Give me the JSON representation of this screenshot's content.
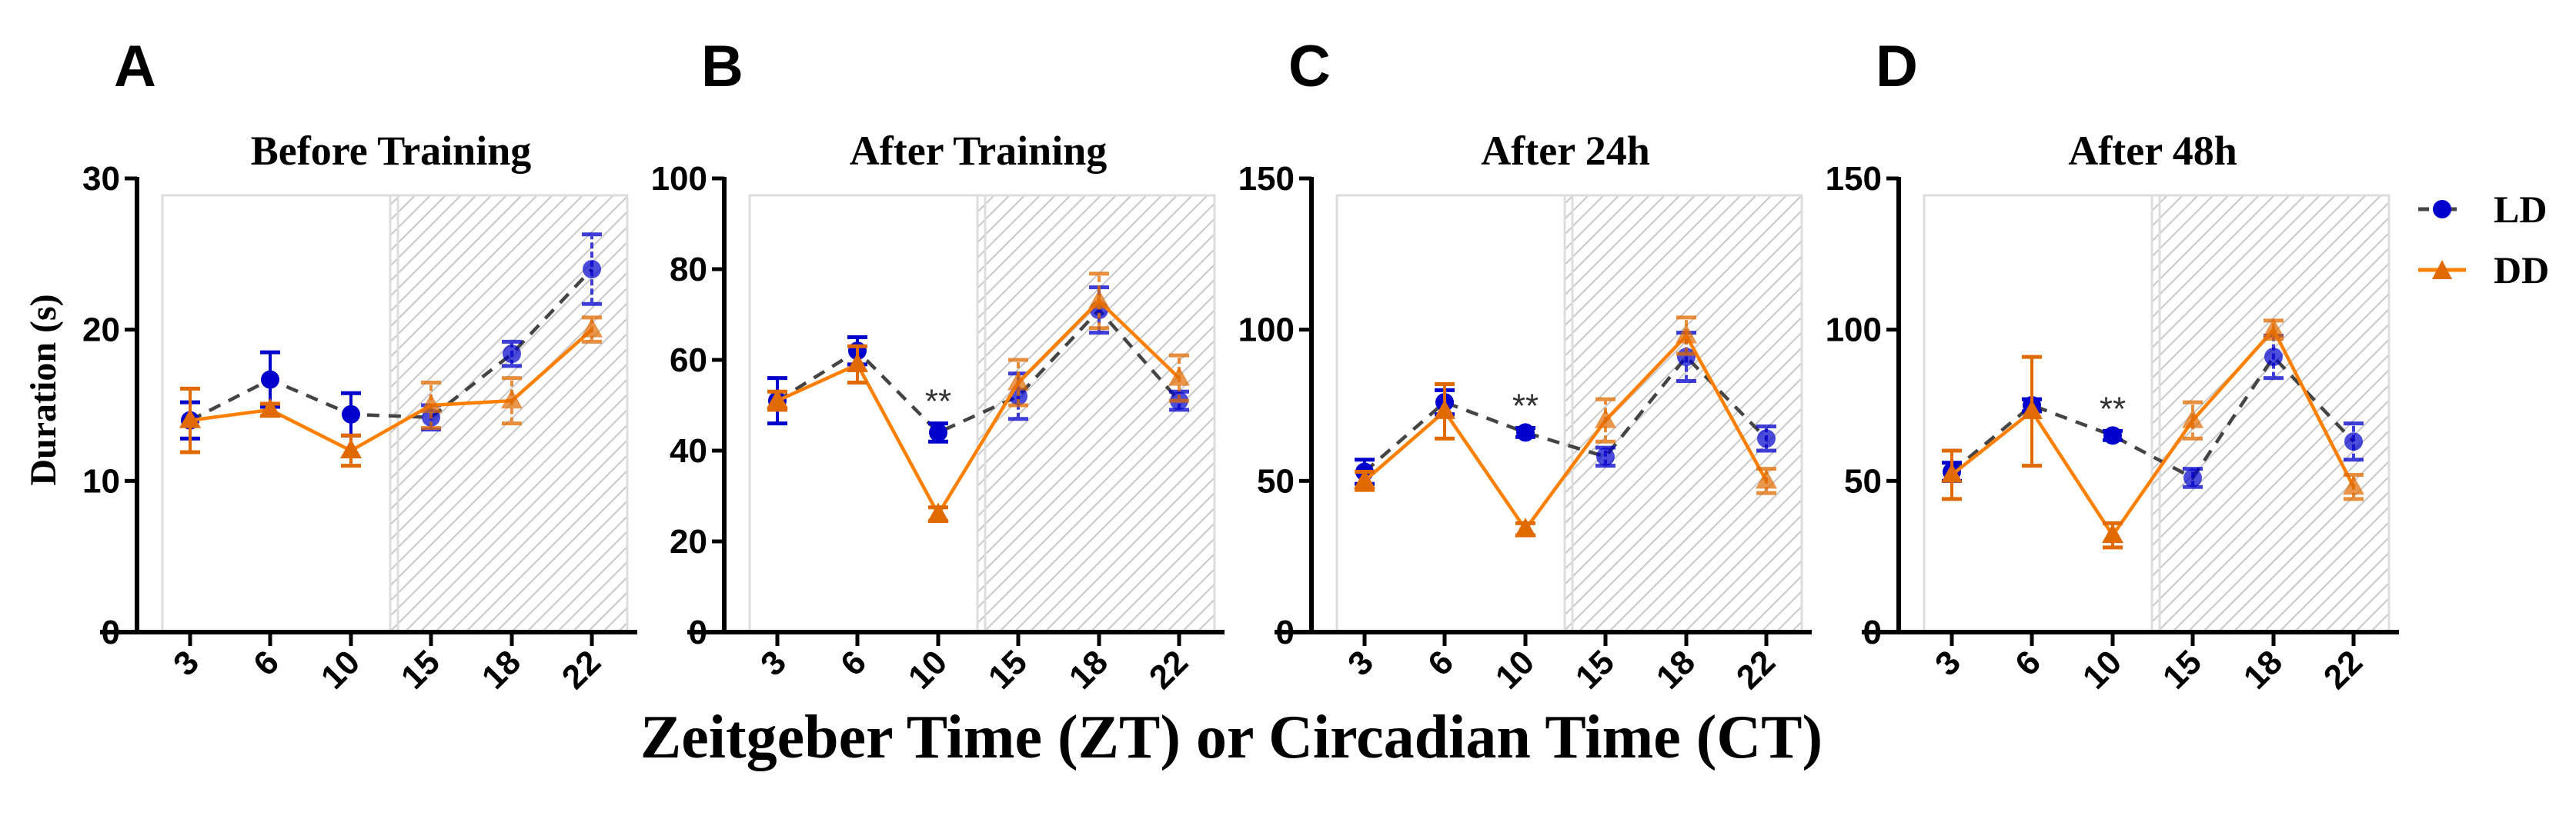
{
  "figure": {
    "xlabel": "Zeitgeber Time (ZT) or Circadian Time (CT)",
    "ylabel": "Duration (s)",
    "legend": [
      {
        "name": "LD",
        "color": "#0000cc",
        "line": "dashed",
        "marker": "circle"
      },
      {
        "name": "DD",
        "color": "#ff8000",
        "line": "solid",
        "marker": "triangle"
      }
    ],
    "legend_position": "right"
  },
  "chart_data": [
    {
      "type": "line",
      "letter": "A",
      "title": "Before Training",
      "categories": [
        "3",
        "6",
        "10",
        "15",
        "18",
        "22"
      ],
      "ylim": [
        0,
        30
      ],
      "yticks": [
        0,
        10,
        20,
        30
      ],
      "dark_phase_from": "15",
      "series": [
        {
          "name": "LD",
          "values": [
            14.0,
            16.7,
            14.4,
            14.2,
            18.4,
            24.0
          ],
          "errors": [
            1.2,
            1.8,
            1.4,
            0.8,
            0.8,
            2.3
          ]
        },
        {
          "name": "DD",
          "values": [
            14.0,
            14.7,
            12.0,
            15.0,
            15.3,
            20.0
          ],
          "errors": [
            2.1,
            0.4,
            1.0,
            1.5,
            1.5,
            0.8
          ]
        }
      ],
      "annotations": []
    },
    {
      "type": "line",
      "letter": "B",
      "title": "After Training",
      "categories": [
        "3",
        "6",
        "10",
        "15",
        "18",
        "22"
      ],
      "ylim": [
        0,
        100
      ],
      "yticks": [
        0,
        20,
        40,
        60,
        80,
        100
      ],
      "dark_phase_from": "15",
      "series": [
        {
          "name": "LD",
          "values": [
            51,
            62,
            44,
            52,
            71,
            51
          ],
          "errors": [
            5,
            3,
            2,
            5,
            5,
            2
          ]
        },
        {
          "name": "DD",
          "values": [
            51,
            59,
            26,
            55,
            73,
            56
          ],
          "errors": [
            2,
            4,
            1.5,
            5,
            6,
            5
          ]
        }
      ],
      "annotations": [
        {
          "x": "10",
          "text": "**"
        }
      ]
    },
    {
      "type": "line",
      "letter": "C",
      "title": "After 24h",
      "categories": [
        "3",
        "6",
        "10",
        "15",
        "18",
        "22"
      ],
      "ylim": [
        0,
        150
      ],
      "yticks": [
        0,
        50,
        100,
        150
      ],
      "dark_phase_from": "15",
      "series": [
        {
          "name": "LD",
          "values": [
            53,
            76,
            66,
            58,
            91,
            64
          ],
          "errors": [
            4,
            4,
            1.5,
            3,
            8,
            4
          ]
        },
        {
          "name": "DD",
          "values": [
            50,
            73,
            34,
            70,
            98,
            50
          ],
          "errors": [
            3,
            9,
            2,
            7,
            6,
            4
          ]
        }
      ],
      "annotations": [
        {
          "x": "10",
          "text": "**"
        }
      ]
    },
    {
      "type": "line",
      "letter": "D",
      "title": "After 48h",
      "categories": [
        "3",
        "6",
        "10",
        "15",
        "18",
        "22"
      ],
      "ylim": [
        0,
        150
      ],
      "yticks": [
        0,
        50,
        100,
        150
      ],
      "dark_phase_from": "15",
      "series": [
        {
          "name": "LD",
          "values": [
            53,
            75,
            65,
            51,
            91,
            63
          ],
          "errors": [
            3,
            2,
            1.5,
            3,
            7,
            6
          ]
        },
        {
          "name": "DD",
          "values": [
            52,
            73,
            32,
            70,
            100,
            48
          ],
          "errors": [
            8,
            18,
            4,
            6,
            3,
            4
          ]
        }
      ],
      "annotations": [
        {
          "x": "10",
          "text": "**"
        }
      ]
    }
  ]
}
